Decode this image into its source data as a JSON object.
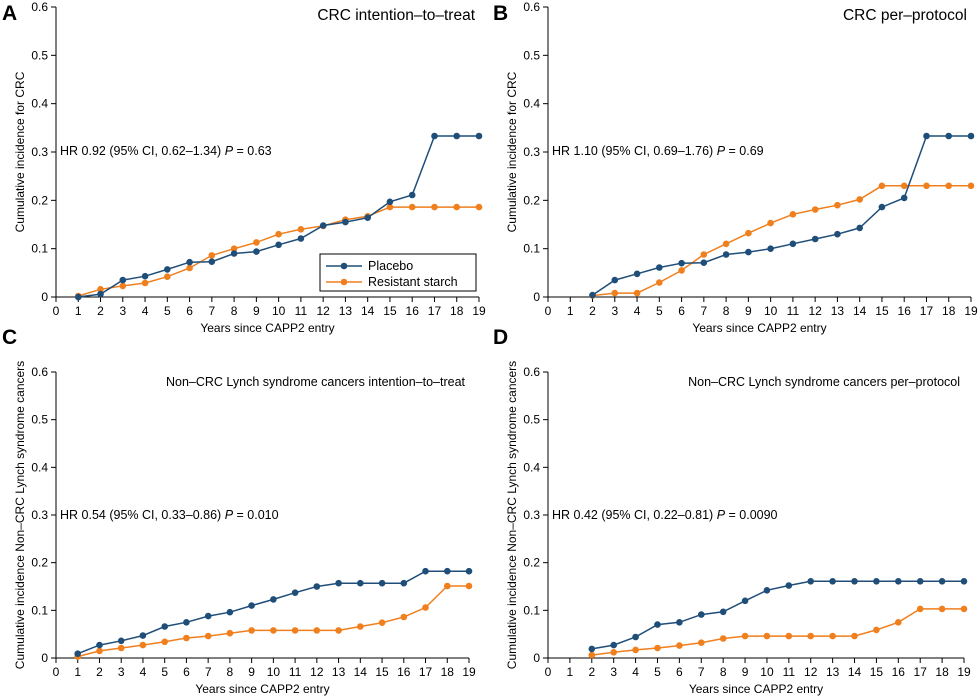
{
  "colors": {
    "placebo": "#1f4e79",
    "starch": "#f07f1e",
    "axis": "#000000"
  },
  "legend": {
    "placebo": "Placebo",
    "starch": "Resistant starch"
  },
  "chart_data": [
    {
      "type": "line",
      "panel": "A",
      "title": "CRC intention–to–treat",
      "xlabel": "Years since CAPP2 entry",
      "ylabel": "Cumulative incidence for CRC",
      "xlim": [
        0,
        19
      ],
      "ylim": [
        0,
        0.6
      ],
      "xticks": [
        "0",
        "1",
        "2",
        "3",
        "4",
        "5",
        "6",
        "7",
        "8",
        "9",
        "10",
        "11",
        "12",
        "13",
        "14",
        "15",
        "16",
        "17",
        "18",
        "19"
      ],
      "yticks": [
        "0",
        "0.1",
        "0.2",
        "0.3",
        "0.4",
        "0.5",
        "0.6"
      ],
      "annotation": {
        "hr": "HR 0.92 (95% CI, 0.62–1.34)",
        "p_label": "P",
        "p_value": "= 0.63"
      },
      "series": [
        {
          "name": "Placebo",
          "x": [
            1,
            2,
            3,
            4,
            5,
            6,
            7,
            8,
            9,
            10,
            11,
            12,
            13,
            14,
            15,
            16,
            17,
            18,
            19
          ],
          "values": [
            0.0,
            0.006,
            0.035,
            0.043,
            0.057,
            0.072,
            0.073,
            0.09,
            0.094,
            0.108,
            0.121,
            0.148,
            0.155,
            0.164,
            0.197,
            0.211,
            0.333,
            0.333,
            0.333
          ]
        },
        {
          "name": "Resistant starch",
          "x": [
            1,
            2,
            3,
            4,
            5,
            6,
            7,
            8,
            9,
            10,
            11,
            12,
            13,
            14,
            15,
            16,
            17,
            18,
            19
          ],
          "values": [
            0.002,
            0.016,
            0.023,
            0.029,
            0.042,
            0.06,
            0.086,
            0.1,
            0.113,
            0.13,
            0.14,
            0.147,
            0.16,
            0.167,
            0.186,
            0.186,
            0.186,
            0.186,
            0.186
          ]
        }
      ]
    },
    {
      "type": "line",
      "panel": "B",
      "title": "CRC per–protocol",
      "xlabel": "Years since CAPP2 entry",
      "ylabel": "Cumulative incidence for CRC",
      "xlim": [
        0,
        19
      ],
      "ylim": [
        0,
        0.6
      ],
      "xticks": [
        "0",
        "1",
        "2",
        "3",
        "4",
        "5",
        "6",
        "7",
        "8",
        "9",
        "10",
        "11",
        "12",
        "13",
        "14",
        "15",
        "16",
        "17",
        "18",
        "19"
      ],
      "yticks": [
        "0",
        "0.1",
        "0.2",
        "0.3",
        "0.4",
        "0.5",
        "0.6"
      ],
      "annotation": {
        "hr": "HR 1.10 (95% CI, 0.69–1.76)",
        "p_label": "P",
        "p_value": "= 0.69"
      },
      "series": [
        {
          "name": "Placebo",
          "x": [
            2,
            3,
            4,
            5,
            6,
            7,
            8,
            9,
            10,
            11,
            12,
            13,
            14,
            15,
            16,
            17,
            18,
            19
          ],
          "values": [
            0.004,
            0.035,
            0.048,
            0.061,
            0.07,
            0.071,
            0.088,
            0.093,
            0.1,
            0.11,
            0.12,
            0.13,
            0.143,
            0.186,
            0.205,
            0.333,
            0.333,
            0.333
          ]
        },
        {
          "name": "Resistant starch",
          "x": [
            2,
            3,
            4,
            5,
            6,
            7,
            8,
            9,
            10,
            11,
            12,
            13,
            14,
            15,
            16,
            17,
            18,
            19
          ],
          "values": [
            0.003,
            0.008,
            0.008,
            0.03,
            0.055,
            0.088,
            0.11,
            0.132,
            0.153,
            0.171,
            0.181,
            0.19,
            0.202,
            0.23,
            0.23,
            0.23,
            0.23,
            0.23
          ]
        }
      ]
    },
    {
      "type": "line",
      "panel": "C",
      "title": "Non–CRC Lynch syndrome cancers intention–to–treat",
      "xlabel": "Years since CAPP2 entry",
      "ylabel": "Cumulative incidence Non–CRC Lynch syndrome cancers",
      "xlim": [
        0,
        19
      ],
      "ylim": [
        0,
        0.6
      ],
      "xticks": [
        "0",
        "1",
        "2",
        "3",
        "4",
        "5",
        "6",
        "7",
        "8",
        "9",
        "10",
        "11",
        "12",
        "13",
        "14",
        "15",
        "16",
        "17",
        "18",
        "19"
      ],
      "yticks": [
        "0",
        "0.1",
        "0.2",
        "0.3",
        "0.4",
        "0.5",
        "0.6"
      ],
      "annotation": {
        "hr": "HR 0.54 (95% CI, 0.33–0.86)",
        "p_label": "P",
        "p_value": "= 0.010"
      },
      "series": [
        {
          "name": "Placebo",
          "x": [
            1,
            2,
            3,
            4,
            5,
            6,
            7,
            8,
            9,
            10,
            11,
            12,
            13,
            14,
            15,
            16,
            17,
            18,
            19
          ],
          "values": [
            0.009,
            0.027,
            0.036,
            0.047,
            0.066,
            0.075,
            0.088,
            0.096,
            0.11,
            0.123,
            0.137,
            0.15,
            0.157,
            0.157,
            0.157,
            0.157,
            0.182,
            0.182,
            0.182
          ]
        },
        {
          "name": "Resistant starch",
          "x": [
            1,
            2,
            3,
            4,
            5,
            6,
            7,
            8,
            9,
            10,
            11,
            12,
            13,
            14,
            15,
            16,
            17,
            18,
            19
          ],
          "values": [
            0.003,
            0.015,
            0.021,
            0.027,
            0.034,
            0.042,
            0.046,
            0.052,
            0.058,
            0.058,
            0.058,
            0.058,
            0.058,
            0.066,
            0.074,
            0.086,
            0.106,
            0.151,
            0.151
          ]
        }
      ]
    },
    {
      "type": "line",
      "panel": "D",
      "title": "Non–CRC Lynch syndrome cancers per–protocol",
      "xlabel": "Years since CAPP2 entry",
      "ylabel": "Cumulative incidence Non–CRC Lynch syndrome cancers",
      "xlim": [
        0,
        19
      ],
      "ylim": [
        0,
        0.6
      ],
      "xticks": [
        "0",
        "1",
        "2",
        "3",
        "4",
        "5",
        "6",
        "7",
        "8",
        "9",
        "10",
        "11",
        "12",
        "13",
        "14",
        "15",
        "16",
        "17",
        "18",
        "19"
      ],
      "yticks": [
        "0",
        "0.1",
        "0.2",
        "0.3",
        "0.4",
        "0.5",
        "0.6"
      ],
      "annotation": {
        "hr": "HR 0.42 (95% CI, 0.22–0.81)",
        "p_label": "P",
        "p_value": "= 0.0090"
      },
      "series": [
        {
          "name": "Placebo",
          "x": [
            2,
            3,
            4,
            5,
            6,
            7,
            8,
            9,
            10,
            11,
            12,
            13,
            14,
            15,
            16,
            17,
            18,
            19
          ],
          "values": [
            0.019,
            0.027,
            0.044,
            0.07,
            0.075,
            0.091,
            0.097,
            0.12,
            0.142,
            0.152,
            0.161,
            0.161,
            0.161,
            0.161,
            0.161,
            0.161,
            0.161,
            0.161
          ]
        },
        {
          "name": "Resistant starch",
          "x": [
            2,
            3,
            4,
            5,
            6,
            7,
            8,
            9,
            10,
            11,
            12,
            13,
            14,
            15,
            16,
            17,
            18,
            19
          ],
          "values": [
            0.006,
            0.012,
            0.017,
            0.021,
            0.026,
            0.032,
            0.041,
            0.046,
            0.046,
            0.046,
            0.046,
            0.046,
            0.046,
            0.059,
            0.075,
            0.103,
            0.103,
            0.103
          ]
        }
      ]
    }
  ]
}
